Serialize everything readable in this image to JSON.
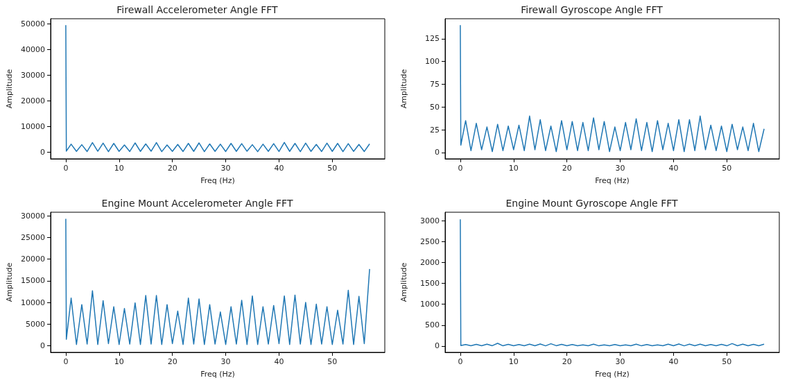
{
  "chart_data": [
    {
      "type": "line",
      "title": "Firewall Accelerometer Angle FFT",
      "xlabel": "Freq (Hz)",
      "ylabel": "Amplitude",
      "color": "#1f77b4",
      "xlim": [
        -2.85,
        59.85
      ],
      "xticks": [
        0,
        10,
        20,
        30,
        40,
        50
      ],
      "ylim": [
        -2500,
        52000
      ],
      "yticks": [
        0,
        10000,
        20000,
        30000,
        40000,
        50000
      ],
      "x": [
        0,
        0.1,
        1,
        2,
        3,
        4,
        5,
        6,
        7,
        8,
        9,
        10,
        11,
        12,
        13,
        14,
        15,
        16,
        17,
        18,
        19,
        20,
        21,
        22,
        23,
        24,
        25,
        26,
        27,
        28,
        29,
        30,
        31,
        32,
        33,
        34,
        35,
        36,
        37,
        38,
        39,
        40,
        41,
        42,
        43,
        44,
        45,
        46,
        47,
        48,
        49,
        50,
        51,
        52,
        53,
        54,
        55,
        56,
        57
      ],
      "values": [
        49500,
        500,
        3200,
        400,
        3000,
        350,
        3800,
        450,
        3600,
        300,
        3500,
        400,
        2900,
        350,
        3700,
        400,
        3300,
        450,
        3800,
        300,
        2900,
        400,
        3100,
        350,
        3500,
        400,
        3700,
        300,
        3300,
        400,
        3200,
        350,
        3500,
        400,
        3400,
        450,
        3000,
        300,
        3200,
        400,
        3400,
        350,
        3900,
        400,
        3500,
        300,
        3600,
        400,
        3100,
        350,
        3600,
        400,
        3500,
        300,
        3400,
        400,
        3100,
        350,
        3300
      ]
    },
    {
      "type": "line",
      "title": "Firewall Gyroscope Angle FFT",
      "xlabel": "Freq (Hz)",
      "ylabel": "Amplitude",
      "color": "#1f77b4",
      "xlim": [
        -2.85,
        59.85
      ],
      "xticks": [
        0,
        10,
        20,
        30,
        40,
        50
      ],
      "ylim": [
        -7,
        147
      ],
      "yticks": [
        0,
        25,
        50,
        75,
        100,
        125
      ],
      "x": [
        0,
        0.1,
        1,
        2,
        3,
        4,
        5,
        6,
        7,
        8,
        9,
        10,
        11,
        12,
        13,
        14,
        15,
        16,
        17,
        18,
        19,
        20,
        21,
        22,
        23,
        24,
        25,
        26,
        27,
        28,
        29,
        30,
        31,
        32,
        33,
        34,
        35,
        36,
        37,
        38,
        39,
        40,
        41,
        42,
        43,
        44,
        45,
        46,
        47,
        48,
        49,
        50,
        51,
        52,
        53,
        54,
        55,
        56,
        57
      ],
      "values": [
        140,
        8,
        35,
        2,
        32,
        3,
        28,
        1,
        31,
        2,
        29,
        3,
        30,
        2,
        40,
        3,
        36,
        2,
        29,
        1,
        35,
        3,
        34,
        2,
        33,
        2,
        38,
        3,
        34,
        1,
        28,
        2,
        33,
        3,
        37,
        2,
        33,
        1,
        35,
        3,
        32,
        2,
        36,
        1,
        36,
        2,
        40,
        3,
        30,
        2,
        29,
        1,
        31,
        3,
        28,
        2,
        32,
        1,
        26
      ]
    },
    {
      "type": "line",
      "title": "Engine Mount Accelerometer Angle FFT",
      "xlabel": "Freq (Hz)",
      "ylabel": "Amplitude",
      "color": "#1f77b4",
      "xlim": [
        -2.85,
        59.85
      ],
      "xticks": [
        0,
        10,
        20,
        30,
        40,
        50
      ],
      "ylim": [
        -1500,
        30800
      ],
      "yticks": [
        0,
        5000,
        10000,
        15000,
        20000,
        25000,
        30000
      ],
      "x": [
        0,
        0.1,
        1,
        2,
        3,
        4,
        5,
        6,
        7,
        8,
        9,
        10,
        11,
        12,
        13,
        14,
        15,
        16,
        17,
        18,
        19,
        20,
        21,
        22,
        23,
        24,
        25,
        26,
        27,
        28,
        29,
        30,
        31,
        32,
        33,
        34,
        35,
        36,
        37,
        38,
        39,
        40,
        41,
        42,
        43,
        44,
        45,
        46,
        47,
        48,
        49,
        50,
        51,
        52,
        53,
        54,
        55,
        56,
        57
      ],
      "values": [
        29300,
        1500,
        11000,
        300,
        9500,
        400,
        12700,
        300,
        10400,
        500,
        9000,
        300,
        8600,
        400,
        9900,
        300,
        11600,
        400,
        11600,
        300,
        9500,
        500,
        8000,
        300,
        11000,
        400,
        10800,
        300,
        9500,
        400,
        7800,
        300,
        9000,
        400,
        10500,
        300,
        11500,
        300,
        9000,
        400,
        9300,
        500,
        11500,
        300,
        11700,
        400,
        10000,
        300,
        9600,
        400,
        9000,
        300,
        8200,
        400,
        12800,
        300,
        11400,
        500,
        17700
      ]
    },
    {
      "type": "line",
      "title": "Engine Mount Gyroscope Angle FFT",
      "xlabel": "Freq (Hz)",
      "ylabel": "Amplitude",
      "color": "#1f77b4",
      "xlim": [
        -2.85,
        59.85
      ],
      "xticks": [
        0,
        10,
        20,
        30,
        40,
        50
      ],
      "ylim": [
        -150,
        3200
      ],
      "yticks": [
        0,
        500,
        1000,
        1500,
        2000,
        2500,
        3000
      ],
      "x": [
        0,
        0.1,
        1,
        2,
        3,
        4,
        5,
        6,
        7,
        8,
        9,
        10,
        11,
        12,
        13,
        14,
        15,
        16,
        17,
        18,
        19,
        20,
        21,
        22,
        23,
        24,
        25,
        26,
        27,
        28,
        29,
        30,
        31,
        32,
        33,
        34,
        35,
        36,
        37,
        38,
        39,
        40,
        41,
        42,
        43,
        44,
        45,
        46,
        47,
        48,
        49,
        50,
        51,
        52,
        53,
        54,
        55,
        56,
        57
      ],
      "values": [
        3030,
        10,
        35,
        8,
        40,
        7,
        45,
        9,
        65,
        6,
        40,
        8,
        35,
        7,
        45,
        8,
        50,
        6,
        55,
        9,
        40,
        7,
        35,
        8,
        30,
        7,
        45,
        6,
        30,
        9,
        35,
        8,
        30,
        7,
        45,
        6,
        35,
        8,
        30,
        9,
        45,
        7,
        50,
        6,
        45,
        8,
        45,
        7,
        35,
        9,
        40,
        6,
        60,
        8,
        45,
        7,
        40,
        9,
        45
      ]
    }
  ]
}
